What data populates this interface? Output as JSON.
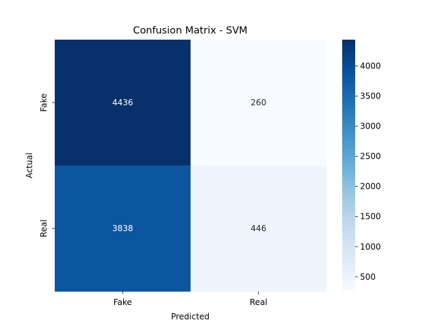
{
  "chart_data": {
    "type": "heatmap",
    "title": "Confusion Matrix - SVM",
    "xlabel": "Predicted",
    "ylabel": "Actual",
    "x_categories": [
      "Fake",
      "Real"
    ],
    "y_categories": [
      "Fake",
      "Real"
    ],
    "values": [
      [
        4436,
        260
      ],
      [
        3838,
        446
      ]
    ],
    "colormap": "Blues",
    "colorbar": {
      "ticks": [
        "500",
        "1000",
        "1500",
        "2000",
        "2500",
        "3000",
        "3500",
        "4000"
      ],
      "range": [
        260,
        4436
      ]
    },
    "grid": false
  }
}
